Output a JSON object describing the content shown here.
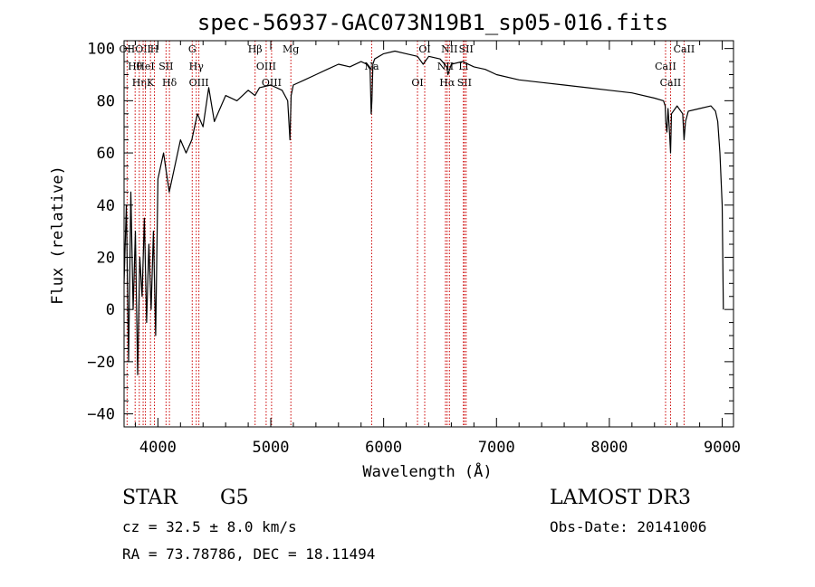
{
  "chart_data": {
    "type": "line",
    "title": "spec-56937-GAC073N19B1_sp05-016.fits",
    "xlabel": "Wavelength (Å)",
    "ylabel": "Flux (relative)",
    "xlim": [
      3700,
      9100
    ],
    "ylim": [
      -45,
      103
    ],
    "x_ticks": [
      4000,
      5000,
      6000,
      7000,
      8000,
      9000
    ],
    "y_ticks": [
      -40,
      -20,
      0,
      20,
      40,
      60,
      80,
      100
    ],
    "grid": false,
    "series": [
      {
        "name": "flux",
        "x": [
          3700,
          3720,
          3740,
          3760,
          3780,
          3800,
          3820,
          3840,
          3860,
          3880,
          3900,
          3920,
          3940,
          3960,
          3980,
          4000,
          4050,
          4100,
          4150,
          4200,
          4250,
          4300,
          4350,
          4400,
          4450,
          4500,
          4600,
          4700,
          4800,
          4860,
          4900,
          5000,
          5100,
          5150,
          5170,
          5180,
          5190,
          5200,
          5300,
          5400,
          5500,
          5600,
          5700,
          5800,
          5850,
          5880,
          5890,
          5896,
          5905,
          5920,
          6000,
          6100,
          6200,
          6300,
          6350,
          6400,
          6500,
          6560,
          6570,
          6600,
          6700,
          6800,
          6900,
          7000,
          7200,
          7400,
          7600,
          7800,
          8000,
          8200,
          8400,
          8480,
          8495,
          8500,
          8510,
          8520,
          8530,
          8542,
          8550,
          8600,
          8650,
          8662,
          8675,
          8700,
          8800,
          8900,
          8940,
          8960,
          8980,
          9000,
          9010
        ],
        "values": [
          10,
          40,
          -20,
          45,
          0,
          30,
          -25,
          20,
          5,
          35,
          -5,
          25,
          0,
          30,
          -10,
          50,
          60,
          45,
          55,
          65,
          60,
          65,
          75,
          70,
          85,
          72,
          82,
          80,
          84,
          82,
          85,
          86,
          84,
          80,
          65,
          82,
          84,
          86,
          88,
          90,
          92,
          94,
          93,
          95,
          94,
          92,
          75,
          80,
          94,
          96,
          98,
          99,
          98,
          97,
          94,
          97,
          96,
          93,
          90,
          94,
          95,
          93,
          92,
          90,
          88,
          87,
          86,
          85,
          84,
          83,
          81,
          80,
          78,
          72,
          68,
          77,
          70,
          60,
          75,
          78,
          75,
          65,
          72,
          76,
          77,
          78,
          76,
          72,
          60,
          40,
          0
        ]
      }
    ],
    "line_markers": [
      {
        "wavelength": 3727,
        "label": "OII"
      },
      {
        "wavelength": 3798,
        "label": "Hθ"
      },
      {
        "wavelength": 3835,
        "label": "Hη"
      },
      {
        "wavelength": 3869,
        "label": "OII"
      },
      {
        "wavelength": 3889,
        "label": "HeI"
      },
      {
        "wavelength": 3934,
        "label": "K"
      },
      {
        "wavelength": 3969,
        "label": "H"
      },
      {
        "wavelength": 4072,
        "label": "SII"
      },
      {
        "wavelength": 4102,
        "label": "Hδ"
      },
      {
        "wavelength": 4304,
        "label": "G"
      },
      {
        "wavelength": 4340,
        "label": "Hγ"
      },
      {
        "wavelength": 4363,
        "label": "OIII"
      },
      {
        "wavelength": 4861,
        "label": "Hβ"
      },
      {
        "wavelength": 4959,
        "label": "OIII"
      },
      {
        "wavelength": 5007,
        "label": "OIII"
      },
      {
        "wavelength": 5178,
        "label": "Mg"
      },
      {
        "wavelength": 5894,
        "label": "Na"
      },
      {
        "wavelength": 6300,
        "label": "OI"
      },
      {
        "wavelength": 6364,
        "label": "OI"
      },
      {
        "wavelength": 6548,
        "label": "NII"
      },
      {
        "wavelength": 6563,
        "label": "Hα"
      },
      {
        "wavelength": 6583,
        "label": "NII"
      },
      {
        "wavelength": 6707,
        "label": "Li"
      },
      {
        "wavelength": 6716,
        "label": "SII"
      },
      {
        "wavelength": 6731,
        "label": "SII"
      },
      {
        "wavelength": 8498,
        "label": "CaII"
      },
      {
        "wavelength": 8542,
        "label": "CaII"
      },
      {
        "wavelength": 8662,
        "label": "CaII"
      }
    ]
  },
  "info": {
    "object_class": "STAR",
    "subclass": "G5",
    "survey": "LAMOST DR3",
    "cz": "cz = 32.5 ± 8.0 km/s",
    "obs_date": "Obs-Date: 20141006",
    "radec": "RA =  73.78786, DEC =  18.11494"
  },
  "colors": {
    "line": "#000000",
    "marker": "#cc0000",
    "axis": "#000000",
    "background": "#ffffff"
  }
}
